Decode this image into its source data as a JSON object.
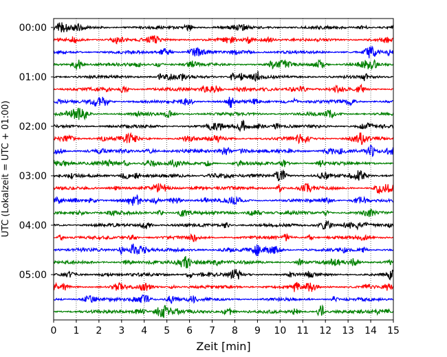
{
  "chart_data": {
    "type": "line",
    "subtype": "helicorder",
    "xlabel": "Zeit  [min]",
    "ylabel": "UTC (Lokalzeit = UTC + 01:00)",
    "xlim": [
      0,
      15
    ],
    "x_ticks": [
      0,
      1,
      2,
      3,
      4,
      5,
      6,
      7,
      8,
      9,
      10,
      11,
      12,
      13,
      14,
      15
    ],
    "y_tick_labels": [
      "00:00",
      "01:00",
      "02:00",
      "03:00",
      "04:00",
      "05:00"
    ],
    "rows_per_hour": 4,
    "row_count": 24,
    "trace_colors": [
      "#000000",
      "#ff0000",
      "#0000ff",
      "#008000"
    ],
    "vertical_grid": "dotted",
    "events": [
      {
        "row": 6,
        "x_min": 7.8,
        "strength": 3.0
      },
      {
        "row": 23,
        "x_min": 11.8,
        "strength": 3.2
      },
      {
        "row": 21,
        "x_min": 10.7,
        "strength": 2.0
      },
      {
        "row": 20,
        "x_min": 14.9,
        "strength": 1.8
      },
      {
        "row": 4,
        "x_min": 7.9,
        "strength": 1.6
      },
      {
        "row": 4,
        "x_min": 8.3,
        "strength": 1.6
      },
      {
        "row": 12,
        "x_min": 3.7,
        "strength": 1.6
      },
      {
        "row": 13,
        "x_min": 10.0,
        "strength": 1.7
      },
      {
        "row": 18,
        "x_min": 3.0,
        "strength": 1.7
      },
      {
        "row": 18,
        "x_min": 9.0,
        "strength": 1.7
      },
      {
        "row": 10,
        "x_min": 14.0,
        "strength": 1.6
      },
      {
        "row": 19,
        "x_min": 10.9,
        "strength": 1.5
      }
    ]
  }
}
